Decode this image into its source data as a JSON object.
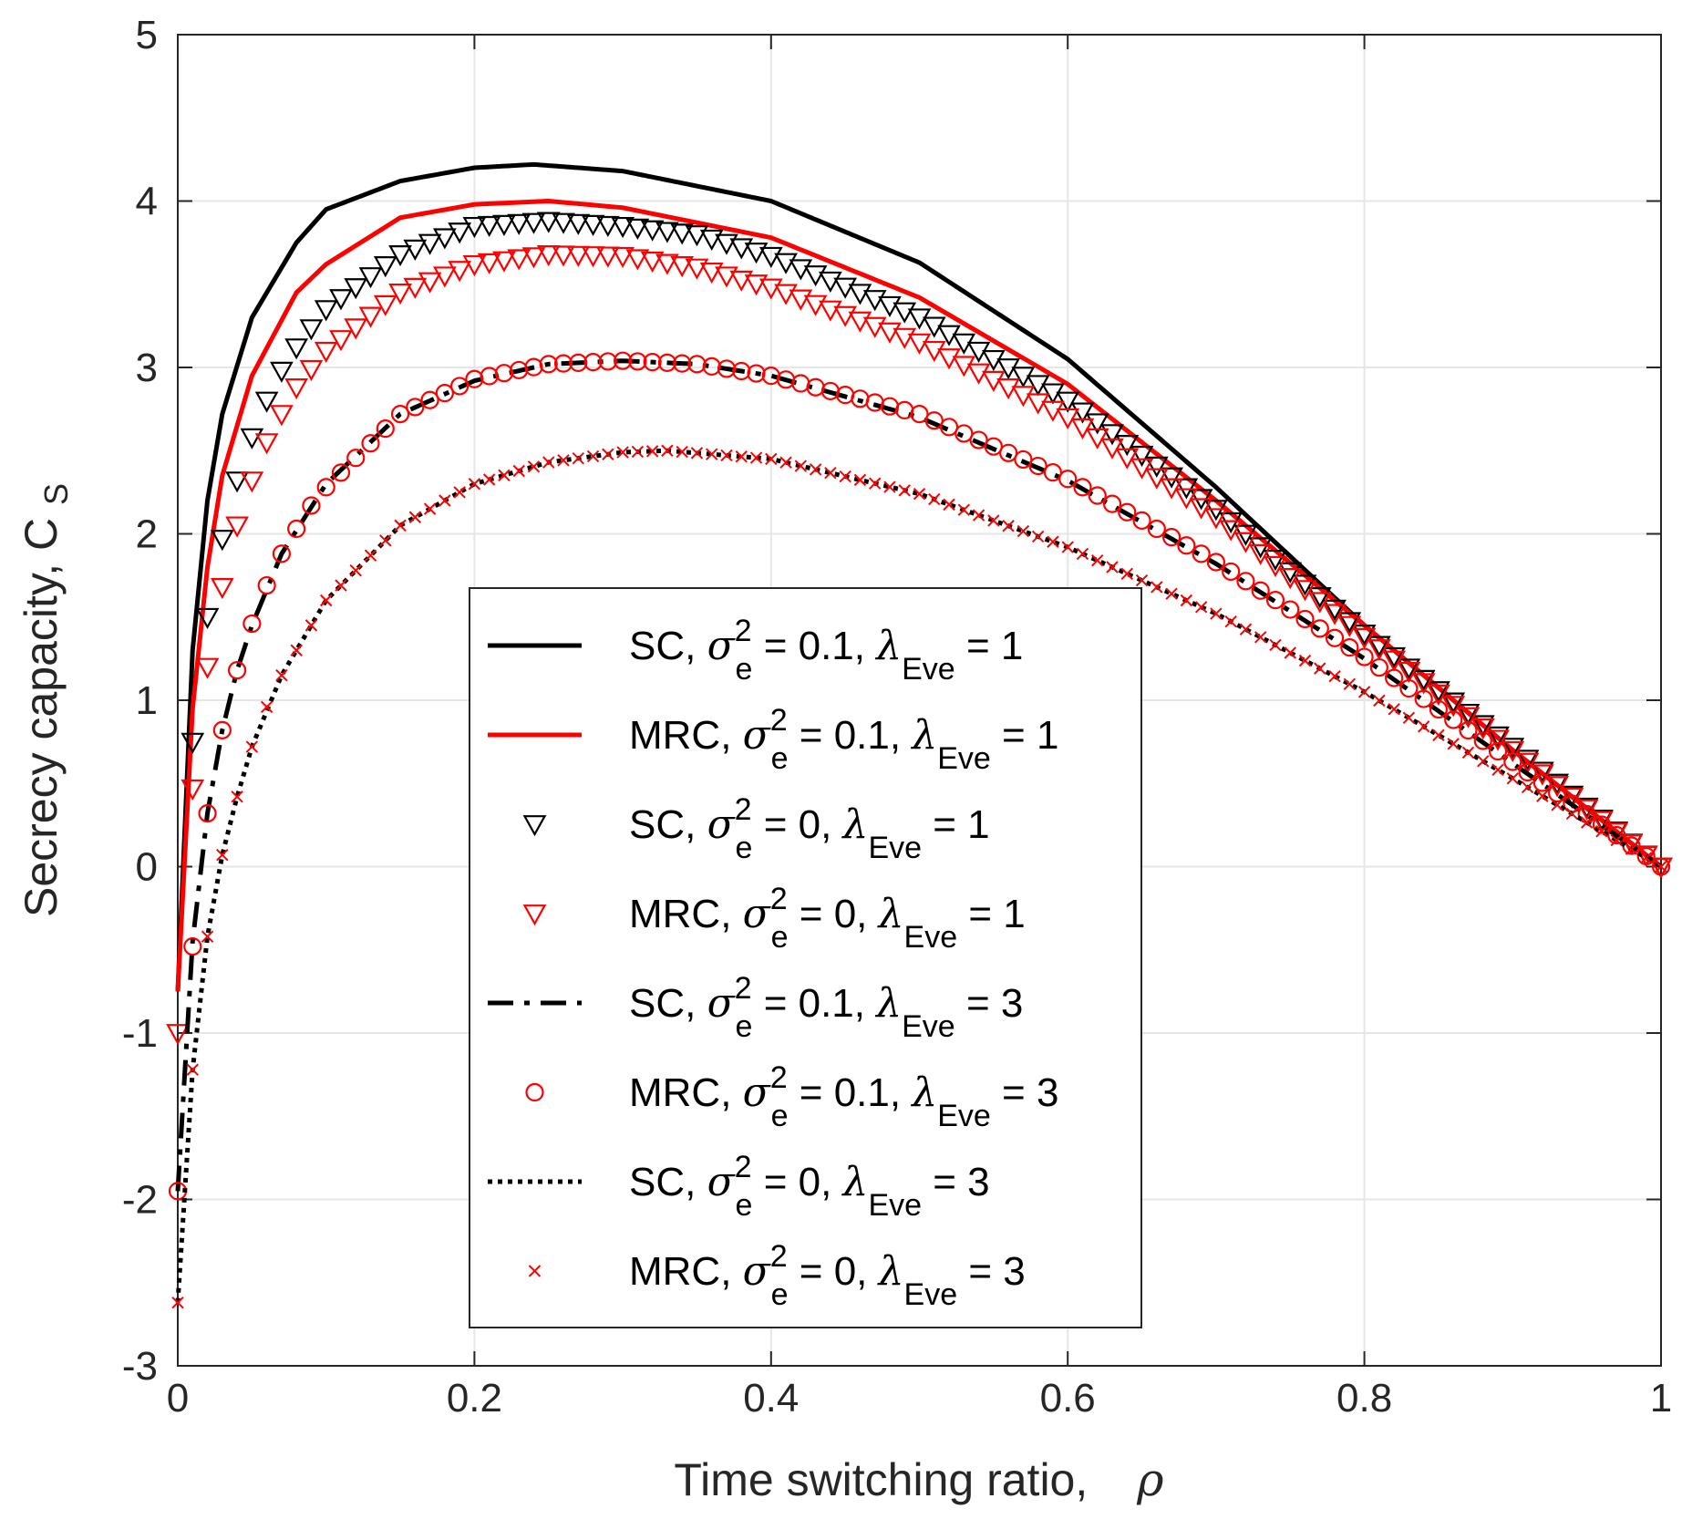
{
  "chart_data": {
    "type": "line",
    "title": "",
    "xlabel": "Time switching ratio,",
    "xlabel_symbol": "ρ",
    "ylabel": "Secrecy capacity, C",
    "ylabel_sub": "S",
    "xlim": [
      0,
      1
    ],
    "ylim": [
      -3,
      5
    ],
    "xticks": [
      0,
      0.2,
      0.4,
      0.6,
      0.8,
      1
    ],
    "xtick_labels": [
      "0",
      "0.2",
      "0.4",
      "0.6",
      "0.8",
      "1"
    ],
    "yticks": [
      -3,
      -2,
      -1,
      0,
      1,
      2,
      3,
      4,
      5
    ],
    "ytick_labels": [
      "-3",
      "-2",
      "-1",
      "0",
      "1",
      "2",
      "3",
      "4",
      "5"
    ],
    "grid": true,
    "legend_position": "center",
    "series": [
      {
        "name": "SC, σe² = 0.1, λEve = 1",
        "scheme": "SC",
        "sigma": "0.1",
        "lambda": "1",
        "color": "#000000",
        "style": "solid",
        "marker": "none",
        "x": [
          0,
          0.01,
          0.02,
          0.03,
          0.05,
          0.08,
          0.1,
          0.15,
          0.2,
          0.24,
          0.3,
          0.4,
          0.5,
          0.6,
          0.7,
          0.8,
          0.9,
          1.0
        ],
        "y": [
          -0.75,
          1.3,
          2.2,
          2.72,
          3.3,
          3.75,
          3.95,
          4.12,
          4.2,
          4.22,
          4.18,
          4.0,
          3.63,
          3.05,
          2.28,
          1.45,
          0.7,
          0.0
        ]
      },
      {
        "name": "MRC, σe² = 0.1, λEve = 1",
        "scheme": "MRC",
        "sigma": "0.1",
        "lambda": "1",
        "color": "#ff0000",
        "style": "solid",
        "marker": "none",
        "x": [
          0,
          0.01,
          0.02,
          0.03,
          0.05,
          0.08,
          0.1,
          0.15,
          0.2,
          0.25,
          0.3,
          0.4,
          0.5,
          0.6,
          0.7,
          0.8,
          0.9,
          1.0
        ],
        "y": [
          -0.75,
          0.95,
          1.8,
          2.35,
          2.95,
          3.45,
          3.62,
          3.9,
          3.98,
          4.0,
          3.96,
          3.78,
          3.42,
          2.9,
          2.2,
          1.45,
          0.7,
          0.0
        ]
      },
      {
        "name": "SC, σe² = 0, λEve = 1",
        "scheme": "SC",
        "sigma": "0",
        "lambda": "1",
        "color": "#000000",
        "style": "none",
        "marker": "triangle-down",
        "x": [
          0.01,
          0.02,
          0.03,
          0.04,
          0.05,
          0.06,
          0.07,
          0.08,
          0.1,
          0.15,
          0.2,
          0.25,
          0.3,
          0.35,
          0.4,
          0.5,
          0.6,
          0.7,
          0.8,
          0.9,
          1.0
        ],
        "y": [
          0.75,
          1.5,
          1.97,
          2.32,
          2.58,
          2.8,
          2.98,
          3.12,
          3.35,
          3.68,
          3.85,
          3.88,
          3.85,
          3.8,
          3.67,
          3.3,
          2.8,
          2.15,
          1.4,
          0.72,
          0.0
        ]
      },
      {
        "name": "MRC, σe² = 0, λEve = 1",
        "scheme": "MRC",
        "sigma": "0",
        "lambda": "1",
        "color": "#ff0000",
        "style": "none",
        "marker": "triangle-down",
        "x": [
          0,
          0.01,
          0.02,
          0.03,
          0.04,
          0.05,
          0.06,
          0.07,
          0.08,
          0.1,
          0.15,
          0.2,
          0.25,
          0.3,
          0.35,
          0.4,
          0.5,
          0.6,
          0.7,
          0.8,
          0.9,
          1.0
        ],
        "y": [
          -1.0,
          0.47,
          1.2,
          1.68,
          2.05,
          2.32,
          2.55,
          2.72,
          2.88,
          3.1,
          3.45,
          3.62,
          3.68,
          3.67,
          3.6,
          3.48,
          3.15,
          2.7,
          2.1,
          1.38,
          0.7,
          0.0
        ]
      },
      {
        "name": "SC, σe² = 0.1, λEve = 3",
        "scheme": "SC",
        "sigma": "0.1",
        "lambda": "3",
        "color": "#000000",
        "style": "dashdot",
        "marker": "none",
        "x": [
          0,
          0.01,
          0.02,
          0.03,
          0.04,
          0.05,
          0.07,
          0.1,
          0.15,
          0.2,
          0.25,
          0.3,
          0.35,
          0.4,
          0.5,
          0.6,
          0.7,
          0.8,
          0.9,
          1.0
        ],
        "y": [
          -1.95,
          -0.45,
          0.32,
          0.82,
          1.18,
          1.45,
          1.88,
          2.3,
          2.72,
          2.92,
          3.02,
          3.04,
          3.02,
          2.95,
          2.7,
          2.32,
          1.82,
          1.25,
          0.62,
          0.0
        ]
      },
      {
        "name": "MRC, σe² = 0.1, λEve = 3",
        "scheme": "MRC",
        "sigma": "0.1",
        "lambda": "3",
        "color": "#ff0000",
        "style": "none",
        "marker": "circle",
        "x": [
          0,
          0.01,
          0.02,
          0.03,
          0.04,
          0.05,
          0.06,
          0.07,
          0.08,
          0.09,
          0.1,
          0.15,
          0.2,
          0.25,
          0.3,
          0.35,
          0.4,
          0.5,
          0.6,
          0.7,
          0.8,
          0.9,
          1.0
        ],
        "y": [
          -1.95,
          -0.48,
          0.32,
          0.82,
          1.18,
          1.46,
          1.69,
          1.88,
          2.03,
          2.17,
          2.28,
          2.72,
          2.93,
          3.02,
          3.04,
          3.02,
          2.95,
          2.72,
          2.33,
          1.83,
          1.26,
          0.63,
          0.0
        ]
      },
      {
        "name": "SC, σe² = 0, λEve = 3",
        "scheme": "SC",
        "sigma": "0",
        "lambda": "3",
        "color": "#000000",
        "style": "dotted",
        "marker": "none",
        "x": [
          0,
          0.01,
          0.02,
          0.03,
          0.04,
          0.05,
          0.07,
          0.1,
          0.15,
          0.2,
          0.25,
          0.3,
          0.33,
          0.4,
          0.5,
          0.6,
          0.7,
          0.8,
          0.9,
          1.0
        ],
        "y": [
          -2.62,
          -1.22,
          -0.42,
          0.07,
          0.42,
          0.72,
          1.15,
          1.6,
          2.05,
          2.3,
          2.43,
          2.49,
          2.5,
          2.45,
          2.24,
          1.92,
          1.52,
          1.05,
          0.53,
          0.0
        ]
      },
      {
        "name": "MRC, σe² = 0, λEve = 3",
        "scheme": "MRC",
        "sigma": "0",
        "lambda": "3",
        "color": "#ff0000",
        "style": "none",
        "marker": "x",
        "x": [
          0,
          0.01,
          0.02,
          0.03,
          0.04,
          0.05,
          0.06,
          0.07,
          0.08,
          0.1,
          0.15,
          0.2,
          0.25,
          0.3,
          0.33,
          0.4,
          0.5,
          0.6,
          0.7,
          0.8,
          0.9,
          1.0
        ],
        "y": [
          -2.62,
          -1.22,
          -0.42,
          0.07,
          0.42,
          0.72,
          0.96,
          1.15,
          1.3,
          1.6,
          2.05,
          2.3,
          2.43,
          2.49,
          2.5,
          2.45,
          2.24,
          1.92,
          1.52,
          1.05,
          0.53,
          0.0
        ]
      }
    ]
  }
}
